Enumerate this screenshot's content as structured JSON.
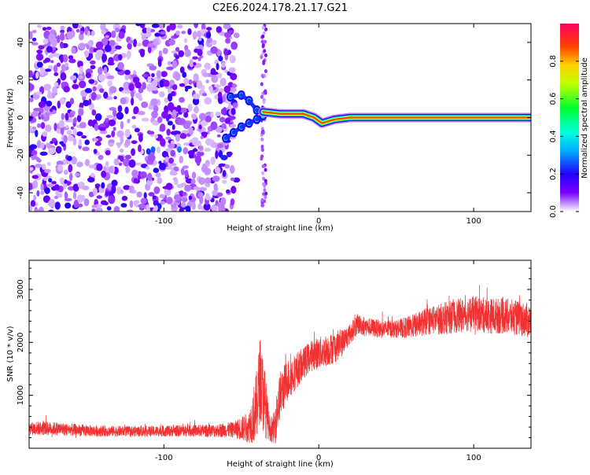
{
  "title": "C2E6.2024.178.21.17.G21",
  "colors": {
    "snr_line": "#f03232",
    "spectrum_low": "#7a00ff",
    "spectrum_high": "#ff0000"
  },
  "chart_data": [
    {
      "type": "heatmap",
      "xlabel": "Height of straight line (km)",
      "ylabel": "Frequency (Hz)",
      "xlim": [
        -187,
        137
      ],
      "ylim": [
        -50,
        50
      ],
      "xticks": [
        -100,
        0,
        100
      ],
      "xtick_labels": [
        "-100",
        "0",
        "100"
      ],
      "yticks": [
        -40,
        -20,
        0,
        20,
        40
      ],
      "ytick_labels": [
        "-40",
        "-20",
        "0",
        "20",
        "40"
      ],
      "colorbar": {
        "label": "Normalized spectral amplitude",
        "range": [
          0,
          1
        ],
        "ticks": [
          0.0,
          0.2,
          0.4,
          0.6,
          0.8
        ],
        "tick_labels": [
          "0.0",
          "0.2",
          "0.4",
          "0.6",
          "0.8"
        ],
        "colormap": "rainbow (violet → red)"
      },
      "grid": false,
      "features": {
        "noise_region_x": [
          -187,
          -57
        ],
        "noise_amplitude": "low (0.05–0.25)",
        "clutter_band_x": [
          -37,
          -34
        ],
        "fork_branches": [
          {
            "x": [
              -57,
              -50,
              -45,
              -40,
              -36
            ],
            "freq": [
              11,
              12,
              9,
              4,
              2
            ]
          },
          {
            "x": [
              -60,
              -55,
              -50,
              -45,
              -40,
              -36
            ],
            "freq": [
              -11,
              -8,
              -5,
              -3,
              -1,
              1
            ]
          }
        ],
        "line_points": [
          {
            "x": -36,
            "freq": 3
          },
          {
            "x": -25,
            "freq": 2
          },
          {
            "x": -10,
            "freq": 2
          },
          {
            "x": -3,
            "freq": 0
          },
          {
            "x": 2,
            "freq": -3
          },
          {
            "x": 10,
            "freq": -1
          },
          {
            "x": 20,
            "freq": 0
          },
          {
            "x": 137,
            "freq": 0
          }
        ],
        "line_amplitude": "high (0.7–1.0)"
      }
    },
    {
      "type": "line",
      "xlabel": "Height of straight line (km)",
      "ylabel": "SNR (10 * v/v)",
      "xlim": [
        -187,
        137
      ],
      "ylim": [
        0,
        3550
      ],
      "xticks": [
        -100,
        0,
        100
      ],
      "xtick_labels": [
        "-100",
        "0",
        "100"
      ],
      "yticks": [
        1000,
        2000,
        3000
      ],
      "ytick_labels": [
        "1000",
        "2000",
        "3000"
      ],
      "grid": false,
      "series": [
        {
          "x": [
            -187,
            -170,
            -150,
            -130,
            -110,
            -90,
            -70,
            -55,
            -45,
            -40,
            -38,
            -35,
            -32,
            -30,
            -28,
            -25,
            -20,
            -15,
            -10,
            -5,
            0,
            5,
            10,
            15,
            20,
            25,
            30,
            40,
            50,
            60,
            70,
            80,
            90,
            100,
            110,
            120,
            130,
            137
          ],
          "y": [
            380,
            370,
            330,
            320,
            320,
            330,
            330,
            350,
            400,
            800,
            1300,
            900,
            400,
            300,
            500,
            1000,
            1300,
            1450,
            1600,
            1750,
            1800,
            1850,
            1900,
            2000,
            2150,
            2350,
            2300,
            2250,
            2250,
            2300,
            2400,
            2450,
            2500,
            2550,
            2500,
            2500,
            2450,
            2400
          ],
          "noise": [
            130,
            130,
            110,
            100,
            100,
            110,
            120,
            150,
            300,
            700,
            800,
            700,
            250,
            200,
            400,
            450,
            400,
            350,
            300,
            300,
            300,
            300,
            300,
            260,
            200,
            200,
            180,
            170,
            170,
            220,
            260,
            300,
            320,
            330,
            340,
            340,
            330,
            330
          ]
        }
      ]
    }
  ]
}
